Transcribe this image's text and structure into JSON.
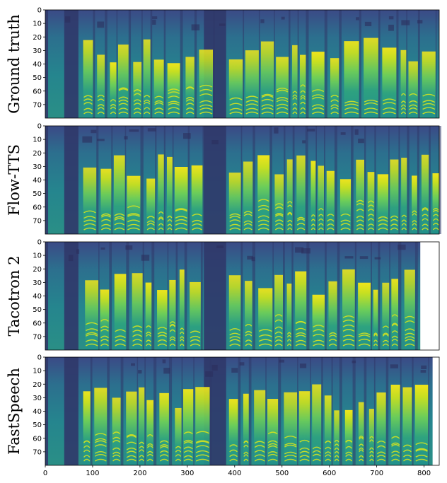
{
  "chart_data": {
    "type": "heatmap",
    "title": "",
    "xlabel": "",
    "ylabel": "",
    "xlim": [
      0,
      832
    ],
    "ylim": [
      0,
      80
    ],
    "colormap": "viridis",
    "y_ticks": [
      "0",
      "10",
      "20",
      "30",
      "40",
      "50",
      "60",
      "70"
    ],
    "x_ticks": [
      "0",
      "100",
      "200",
      "300",
      "400",
      "500",
      "600",
      "700",
      "800"
    ],
    "panels": [
      {
        "label": "Ground truth",
        "frames": 832
      },
      {
        "label": "Flow-TTS",
        "frames": 832
      },
      {
        "label": "Tacotron 2",
        "frames": 792
      },
      {
        "label": "FastSpeech",
        "frames": 818
      }
    ]
  },
  "colors": {
    "low": "#30386a",
    "mid": "#2a8a8b",
    "high": "#d5e21f",
    "background": "#ffffff"
  }
}
